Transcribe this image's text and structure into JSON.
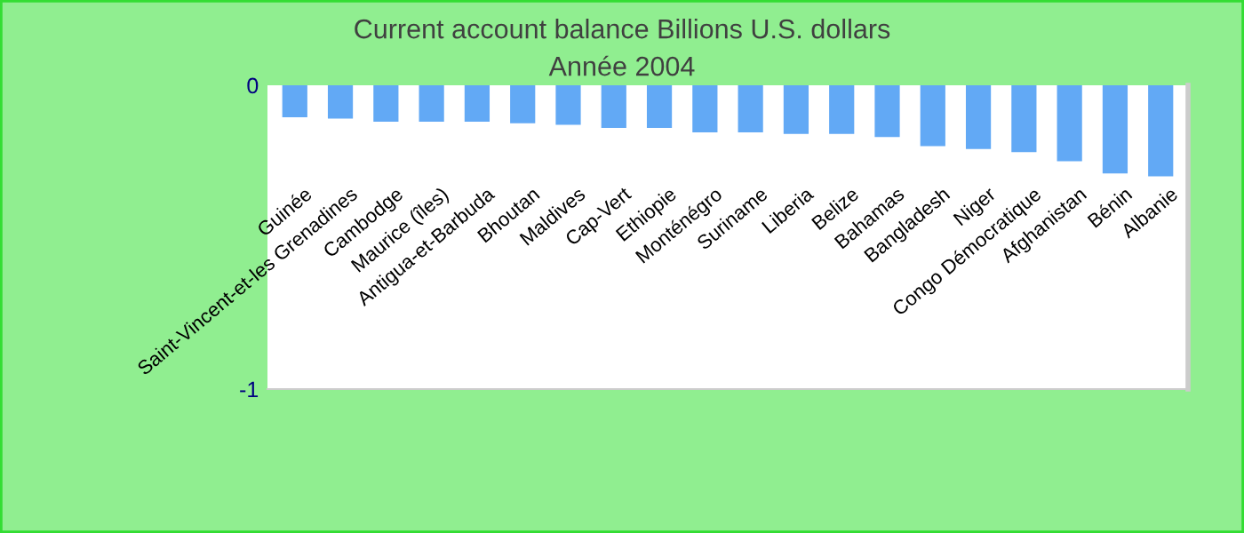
{
  "chart_data": {
    "type": "bar",
    "title": "Current account balance Billions U.S. dollars",
    "subtitle": "Année 2004",
    "categories": [
      "Guinée",
      "Saint-Vincent-et-les Grenadines",
      "Cambodge",
      "Maurice (îles)",
      "Antigua-et-Barbuda",
      "Bhoutan",
      "Maldives",
      "Cap-Vert",
      "Ethiopie",
      "Monténégro",
      "Suriname",
      "Liberia",
      "Belize",
      "Bahamas",
      "Bangladesh",
      "Niger",
      "Congo Démocratique",
      "Afghanistan",
      "Bénin",
      "Albanie"
    ],
    "values": [
      -0.105,
      -0.11,
      -0.12,
      -0.12,
      -0.12,
      -0.125,
      -0.13,
      -0.14,
      -0.14,
      -0.155,
      -0.155,
      -0.16,
      -0.16,
      -0.17,
      -0.2,
      -0.21,
      -0.22,
      -0.25,
      -0.29,
      -0.3
    ],
    "color": "#62a9f5",
    "ylim": [
      -1,
      0
    ],
    "yticks": [
      -1,
      0
    ],
    "grid": false
  }
}
